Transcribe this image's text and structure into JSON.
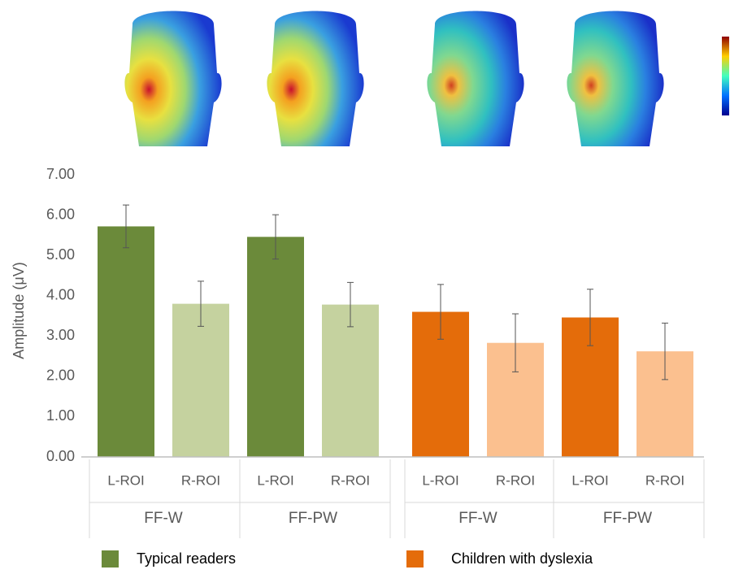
{
  "chart_data": {
    "type": "bar",
    "ylabel": "Amplitude (μV)",
    "categories": [
      "L-ROI",
      "R-ROI",
      "L-ROI",
      "R-ROI",
      "L-ROI",
      "R-ROI",
      "L-ROI",
      "R-ROI"
    ],
    "groups": [
      "FF-W",
      "FF-PW",
      "FF-W",
      "FF-PW"
    ],
    "values": [
      5.72,
      3.8,
      5.46,
      3.78,
      3.6,
      2.83,
      3.46,
      2.62
    ],
    "errors": [
      0.53,
      0.56,
      0.55,
      0.55,
      0.68,
      0.72,
      0.7,
      0.7
    ],
    "colors": [
      "#6b8a3a",
      "#c5d29f",
      "#6b8a3a",
      "#c5d29f",
      "#e46c0a",
      "#fbc08f",
      "#e46c0a",
      "#fbc08f"
    ],
    "legend": [
      {
        "name": "Typical readers",
        "color": "#6b8a3a"
      },
      {
        "name": "Children with dyslexia",
        "color": "#e46c0a"
      }
    ],
    "ylim": [
      0,
      7
    ],
    "yticks": [
      {
        "value": 0,
        "label": "0.00"
      },
      {
        "value": 1,
        "label": "1.00"
      },
      {
        "value": 2,
        "label": "2.00"
      },
      {
        "value": 3,
        "label": "3.00"
      },
      {
        "value": 4,
        "label": "4.00"
      },
      {
        "value": 5,
        "label": "5.00"
      },
      {
        "value": 6,
        "label": "6.00"
      },
      {
        "value": 7,
        "label": "7.00"
      }
    ]
  }
}
